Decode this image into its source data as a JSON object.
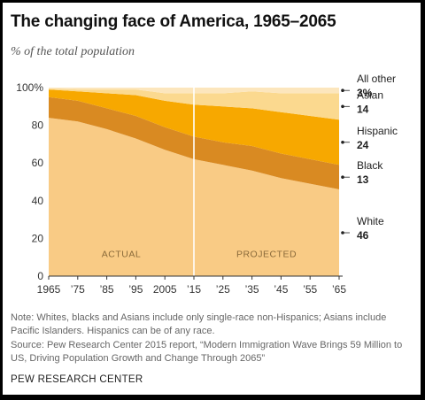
{
  "chart_data": {
    "type": "area",
    "stacked": true,
    "title": "The changing face of America, 1965–2065",
    "subtitle": "% of the total population",
    "x": [
      1965,
      1975,
      1985,
      1995,
      2005,
      2015,
      2025,
      2035,
      2045,
      2055,
      2065
    ],
    "x_tick_labels": [
      "1965",
      "’75",
      "’85",
      "’95",
      "2005",
      "’15",
      "’25",
      "’35",
      "’45",
      "’55",
      "’65"
    ],
    "y_ticks": [
      0,
      20,
      40,
      60,
      80,
      100
    ],
    "y_tick_labels": [
      "0",
      "20",
      "40",
      "60",
      "80",
      "100%"
    ],
    "ylim": [
      0,
      100
    ],
    "series": [
      {
        "name": "White",
        "end_label": "46",
        "color": "#f9cb85",
        "values": [
          84,
          82,
          78,
          73,
          67,
          62,
          59,
          56,
          52,
          49,
          46
        ]
      },
      {
        "name": "Black",
        "end_label": "13",
        "color": "#d98a22",
        "values": [
          11,
          11,
          11,
          12,
          12,
          12,
          12,
          13,
          13,
          13,
          13
        ]
      },
      {
        "name": "Hispanic",
        "end_label": "24",
        "color": "#f7a800",
        "values": [
          4,
          5,
          8,
          11,
          14,
          17,
          19,
          20,
          22,
          23,
          24
        ]
      },
      {
        "name": "Asian",
        "end_label": "14",
        "color": "#fbd98f",
        "values": [
          0.5,
          1,
          2,
          3,
          4,
          6,
          7,
          9,
          10,
          12,
          14
        ]
      },
      {
        "name": "All other",
        "end_label": "3%",
        "color": "#fce6bd",
        "values": [
          0.5,
          1,
          1,
          1,
          3,
          3,
          3,
          2,
          3,
          3,
          3
        ]
      }
    ],
    "divider_x": 2015,
    "annotations": [
      {
        "text": "ACTUAL",
        "x": 1990,
        "y": 10
      },
      {
        "text": "PROJECTED",
        "x": 2040,
        "y": 10
      }
    ]
  },
  "note": "Note: Whites, blacks and Asians include only single-race non-Hispanics; Asians include Pacific Islanders. Hispanics can be of any race.",
  "source": "Source:  Pew Research Center 2015 report, “Modern Immigration Wave Brings 59 Million to US, Driving Population Growth and Change Through 2065”",
  "footer": "PEW RESEARCH CENTER",
  "colors": {
    "text": "#111111",
    "muted": "#666666",
    "axis": "#333333"
  }
}
